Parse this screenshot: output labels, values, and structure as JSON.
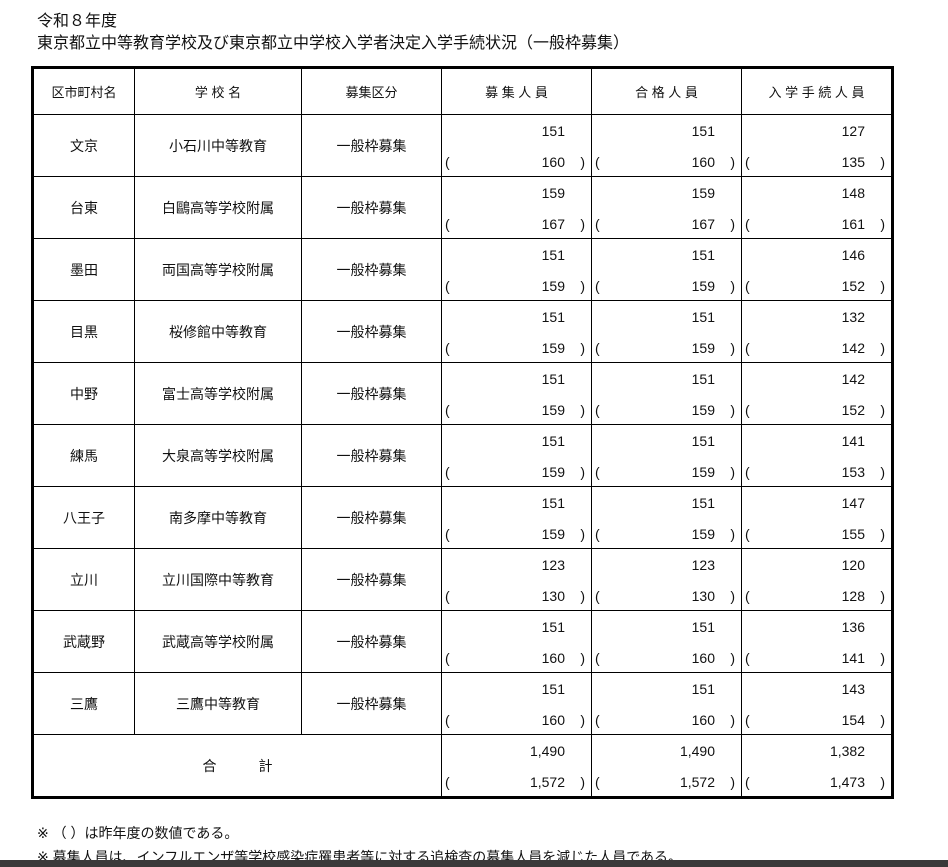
{
  "title_year": "令和８年度",
  "title": "東京都立中等教育学校及び東京都立中学校入学者決定入学手続状況（一般枠募集）",
  "headers": [
    "区市町村名",
    "学 校 名",
    "募集区分",
    "募 集 人 員",
    "合 格 人 員",
    "入 学 手 続 人 員"
  ],
  "rows": [
    {
      "area": "文京",
      "school": "小石川中等教育",
      "category": "一般枠募集",
      "recruit": "151",
      "recruit_prev": "160",
      "passed": "151",
      "passed_prev": "160",
      "enrolled": "127",
      "enrolled_prev": "135"
    },
    {
      "area": "台東",
      "school": "白鷗高等学校附属",
      "category": "一般枠募集",
      "recruit": "159",
      "recruit_prev": "167",
      "passed": "159",
      "passed_prev": "167",
      "enrolled": "148",
      "enrolled_prev": "161"
    },
    {
      "area": "墨田",
      "school": "両国高等学校附属",
      "category": "一般枠募集",
      "recruit": "151",
      "recruit_prev": "159",
      "passed": "151",
      "passed_prev": "159",
      "enrolled": "146",
      "enrolled_prev": "152"
    },
    {
      "area": "目黒",
      "school": "桜修館中等教育",
      "category": "一般枠募集",
      "recruit": "151",
      "recruit_prev": "159",
      "passed": "151",
      "passed_prev": "159",
      "enrolled": "132",
      "enrolled_prev": "142"
    },
    {
      "area": "中野",
      "school": "富士高等学校附属",
      "category": "一般枠募集",
      "recruit": "151",
      "recruit_prev": "159",
      "passed": "151",
      "passed_prev": "159",
      "enrolled": "142",
      "enrolled_prev": "152"
    },
    {
      "area": "練馬",
      "school": "大泉高等学校附属",
      "category": "一般枠募集",
      "recruit": "151",
      "recruit_prev": "159",
      "passed": "151",
      "passed_prev": "159",
      "enrolled": "141",
      "enrolled_prev": "153"
    },
    {
      "area": "八王子",
      "school": "南多摩中等教育",
      "category": "一般枠募集",
      "recruit": "151",
      "recruit_prev": "159",
      "passed": "151",
      "passed_prev": "159",
      "enrolled": "147",
      "enrolled_prev": "155"
    },
    {
      "area": "立川",
      "school": "立川国際中等教育",
      "category": "一般枠募集",
      "recruit": "123",
      "recruit_prev": "130",
      "passed": "123",
      "passed_prev": "130",
      "enrolled": "120",
      "enrolled_prev": "128"
    },
    {
      "area": "武蔵野",
      "school": "武蔵高等学校附属",
      "category": "一般枠募集",
      "recruit": "151",
      "recruit_prev": "160",
      "passed": "151",
      "passed_prev": "160",
      "enrolled": "136",
      "enrolled_prev": "141"
    },
    {
      "area": "三鷹",
      "school": "三鷹中等教育",
      "category": "一般枠募集",
      "recruit": "151",
      "recruit_prev": "160",
      "passed": "151",
      "passed_prev": "160",
      "enrolled": "143",
      "enrolled_prev": "154"
    }
  ],
  "total": {
    "label": "合　　　計",
    "recruit": "1,490",
    "recruit_prev": "1,572",
    "passed": "1,490",
    "passed_prev": "1,572",
    "enrolled": "1,382",
    "enrolled_prev": "1,473"
  },
  "paren_open": "(",
  "paren_close": ")",
  "notes": [
    "※ （ ）は昨年度の数値である。",
    "※ 募集人員は、インフルエンザ等学校感染症罹患者等に対する追検査の募集人員を減じた人員である。"
  ]
}
